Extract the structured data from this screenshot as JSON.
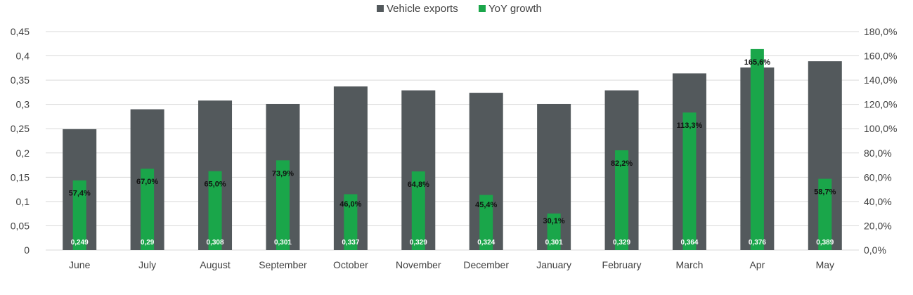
{
  "chart_data": {
    "type": "bar",
    "categories": [
      "June",
      "July",
      "August",
      "September",
      "October",
      "November",
      "December",
      "January",
      "February",
      "March",
      "Apr",
      "May"
    ],
    "series": [
      {
        "name": "Vehicle exports",
        "axis": "left",
        "color": "#53595c",
        "values": [
          0.249,
          0.29,
          0.308,
          0.301,
          0.337,
          0.329,
          0.324,
          0.301,
          0.329,
          0.364,
          0.376,
          0.389
        ],
        "labels": [
          "0,249",
          "0,29",
          "0,308",
          "0,301",
          "0,337",
          "0,329",
          "0,324",
          "0,301",
          "0,329",
          "0,364",
          "0,376",
          "0,389"
        ]
      },
      {
        "name": "YoY growth",
        "axis": "right",
        "color": "#1aa64a",
        "values": [
          57.4,
          67.0,
          65.0,
          73.9,
          46.0,
          64.8,
          45.4,
          30.1,
          82.2,
          113.3,
          165.6,
          58.7
        ],
        "labels": [
          "57,4%",
          "67,0%",
          "65,0%",
          "73,9%",
          "46,0%",
          "64,8%",
          "45,4%",
          "30,1%",
          "82,2%",
          "113,3%",
          "165,6%",
          "58,7%"
        ]
      }
    ],
    "left_axis": {
      "ylim": [
        0,
        0.45
      ],
      "ticks": [
        0,
        0.05,
        0.1,
        0.15,
        0.2,
        0.25,
        0.3,
        0.35,
        0.4,
        0.45
      ],
      "tick_labels": [
        "0",
        "0,05",
        "0,1",
        "0,15",
        "0,2",
        "0,25",
        "0,3",
        "0,35",
        "0,4",
        "0,45"
      ]
    },
    "right_axis": {
      "ylim": [
        0,
        180
      ],
      "ticks": [
        0,
        20,
        40,
        60,
        80,
        100,
        120,
        140,
        160,
        180
      ],
      "tick_labels": [
        "0,0%",
        "20,0%",
        "40,0%",
        "60,0%",
        "80,0%",
        "100,0%",
        "120,0%",
        "140,0%",
        "160,0%",
        "180,0%"
      ]
    },
    "title": "",
    "grid": true,
    "legend_position": "top-center"
  }
}
